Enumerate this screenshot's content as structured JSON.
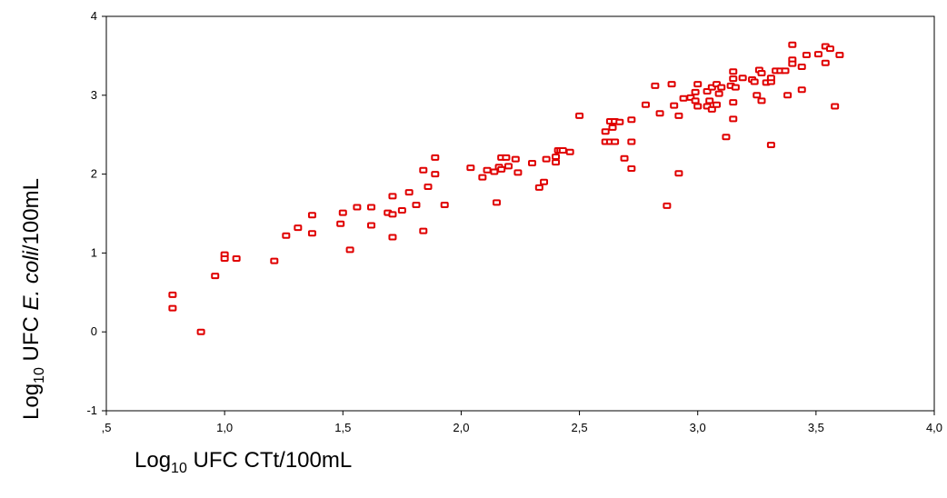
{
  "chart_data": {
    "type": "scatter",
    "title": "",
    "xlabel": {
      "base": "Log",
      "subscript": "10",
      "rest": " UFC CTt/100mL"
    },
    "ylabel": {
      "base": "Log",
      "subscript": "10",
      "pre_italic": " UFC ",
      "italic": "E. coli",
      "post_italic": "/100mL"
    },
    "xlim": [
      0.5,
      4.0
    ],
    "ylim": [
      -1,
      4
    ],
    "x_ticks": [
      {
        "value": 0.5,
        "label": ",5"
      },
      {
        "value": 1.0,
        "label": "1,0"
      },
      {
        "value": 1.5,
        "label": "1,5"
      },
      {
        "value": 2.0,
        "label": "2,0"
      },
      {
        "value": 2.5,
        "label": "2,5"
      },
      {
        "value": 3.0,
        "label": "3,0"
      },
      {
        "value": 3.5,
        "label": "3,5"
      },
      {
        "value": 4.0,
        "label": "4,0"
      }
    ],
    "y_ticks": [
      {
        "value": -1,
        "label": "-1"
      },
      {
        "value": 0,
        "label": "0"
      },
      {
        "value": 1,
        "label": "1"
      },
      {
        "value": 2,
        "label": "2"
      },
      {
        "value": 3,
        "label": "3"
      },
      {
        "value": 4,
        "label": "4"
      }
    ],
    "grid": false,
    "marker_color": "#e00000",
    "points": [
      [
        0.78,
        0.47
      ],
      [
        0.78,
        0.3
      ],
      [
        0.9,
        0.0
      ],
      [
        0.96,
        0.71
      ],
      [
        1.0,
        0.98
      ],
      [
        1.0,
        0.93
      ],
      [
        1.05,
        0.93
      ],
      [
        1.21,
        0.9
      ],
      [
        1.26,
        1.22
      ],
      [
        1.31,
        1.32
      ],
      [
        1.37,
        1.48
      ],
      [
        1.37,
        1.25
      ],
      [
        1.49,
        1.37
      ],
      [
        1.5,
        1.51
      ],
      [
        1.53,
        1.04
      ],
      [
        1.56,
        1.58
      ],
      [
        1.62,
        1.58
      ],
      [
        1.62,
        1.35
      ],
      [
        1.69,
        1.51
      ],
      [
        1.71,
        1.49
      ],
      [
        1.71,
        1.72
      ],
      [
        1.71,
        1.2
      ],
      [
        1.75,
        1.54
      ],
      [
        1.78,
        1.77
      ],
      [
        1.81,
        1.61
      ],
      [
        1.84,
        2.05
      ],
      [
        1.84,
        1.28
      ],
      [
        1.86,
        1.84
      ],
      [
        1.89,
        2.21
      ],
      [
        1.89,
        2.0
      ],
      [
        1.93,
        1.61
      ],
      [
        2.04,
        2.08
      ],
      [
        2.09,
        1.96
      ],
      [
        2.11,
        2.05
      ],
      [
        2.14,
        2.03
      ],
      [
        2.15,
        1.64
      ],
      [
        2.16,
        2.09
      ],
      [
        2.17,
        2.21
      ],
      [
        2.17,
        2.06
      ],
      [
        2.19,
        2.21
      ],
      [
        2.2,
        2.1
      ],
      [
        2.23,
        2.19
      ],
      [
        2.24,
        2.02
      ],
      [
        2.3,
        2.14
      ],
      [
        2.33,
        1.83
      ],
      [
        2.35,
        1.9
      ],
      [
        2.36,
        2.19
      ],
      [
        2.4,
        2.15
      ],
      [
        2.4,
        2.22
      ],
      [
        2.41,
        2.3
      ],
      [
        2.42,
        2.3
      ],
      [
        2.43,
        2.3
      ],
      [
        2.46,
        2.28
      ],
      [
        2.5,
        2.74
      ],
      [
        2.61,
        2.54
      ],
      [
        2.61,
        2.41
      ],
      [
        2.63,
        2.41
      ],
      [
        2.63,
        2.67
      ],
      [
        2.64,
        2.59
      ],
      [
        2.65,
        2.41
      ],
      [
        2.65,
        2.67
      ],
      [
        2.67,
        2.66
      ],
      [
        2.69,
        2.2
      ],
      [
        2.72,
        2.69
      ],
      [
        2.72,
        2.41
      ],
      [
        2.72,
        2.07
      ],
      [
        2.78,
        2.88
      ],
      [
        2.82,
        3.12
      ],
      [
        2.84,
        2.77
      ],
      [
        2.87,
        1.6
      ],
      [
        2.89,
        3.14
      ],
      [
        2.9,
        2.87
      ],
      [
        2.92,
        2.74
      ],
      [
        2.92,
        2.01
      ],
      [
        2.94,
        2.96
      ],
      [
        2.97,
        2.97
      ],
      [
        2.99,
        2.93
      ],
      [
        2.99,
        3.04
      ],
      [
        3.0,
        3.14
      ],
      [
        3.0,
        2.86
      ],
      [
        3.04,
        3.05
      ],
      [
        3.04,
        2.86
      ],
      [
        3.05,
        2.93
      ],
      [
        3.06,
        3.1
      ],
      [
        3.06,
        2.82
      ],
      [
        3.08,
        3.14
      ],
      [
        3.08,
        2.88
      ],
      [
        3.09,
        3.02
      ],
      [
        3.1,
        3.1
      ],
      [
        3.12,
        2.47
      ],
      [
        3.14,
        3.12
      ],
      [
        3.15,
        3.3
      ],
      [
        3.15,
        3.21
      ],
      [
        3.15,
        2.91
      ],
      [
        3.15,
        2.7
      ],
      [
        3.16,
        3.1
      ],
      [
        3.19,
        3.22
      ],
      [
        3.23,
        3.2
      ],
      [
        3.24,
        3.17
      ],
      [
        3.25,
        3.0
      ],
      [
        3.26,
        3.32
      ],
      [
        3.27,
        3.28
      ],
      [
        3.27,
        2.93
      ],
      [
        3.29,
        3.16
      ],
      [
        3.31,
        3.17
      ],
      [
        3.31,
        3.22
      ],
      [
        3.31,
        2.37
      ],
      [
        3.33,
        3.31
      ],
      [
        3.35,
        3.31
      ],
      [
        3.37,
        3.31
      ],
      [
        3.38,
        3.0
      ],
      [
        3.4,
        3.64
      ],
      [
        3.4,
        3.45
      ],
      [
        3.4,
        3.4
      ],
      [
        3.44,
        3.36
      ],
      [
        3.44,
        3.07
      ],
      [
        3.46,
        3.51
      ],
      [
        3.51,
        3.52
      ],
      [
        3.54,
        3.62
      ],
      [
        3.54,
        3.41
      ],
      [
        3.56,
        3.59
      ],
      [
        3.58,
        2.86
      ],
      [
        3.6,
        3.51
      ]
    ]
  }
}
